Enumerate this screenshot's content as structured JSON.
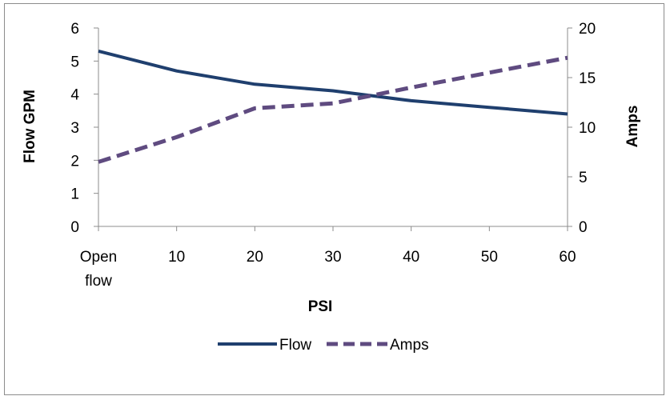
{
  "chart_data": {
    "type": "line",
    "title": "",
    "xlabel": "PSI",
    "ylabel": "Flow GPM",
    "y2label": "Amps",
    "categories": [
      "Open flow",
      "10",
      "20",
      "30",
      "40",
      "50",
      "60"
    ],
    "category_lines": [
      [
        "Open",
        "flow"
      ],
      [
        "10"
      ],
      [
        "20"
      ],
      [
        "30"
      ],
      [
        "40"
      ],
      [
        "50"
      ],
      [
        "60"
      ]
    ],
    "ylim": [
      0,
      6
    ],
    "y_ticks": [
      "0",
      "1",
      "2",
      "3",
      "4",
      "5",
      "6"
    ],
    "y2lim": [
      0,
      20
    ],
    "y2_ticks": [
      "0",
      "5",
      "10",
      "15",
      "20"
    ],
    "legend_position": "bottom",
    "grid": false,
    "series": [
      {
        "name": "Flow",
        "axis": "left",
        "style": "solid",
        "color": "#1f3f6e",
        "values": [
          5.3,
          4.7,
          4.3,
          4.1,
          3.8,
          3.6,
          3.4
        ]
      },
      {
        "name": "Amps",
        "axis": "right",
        "style": "dashed",
        "color": "#5f4b80",
        "values": [
          6.5,
          9.0,
          11.9,
          12.4,
          14.0,
          15.5,
          17.0
        ]
      }
    ]
  }
}
